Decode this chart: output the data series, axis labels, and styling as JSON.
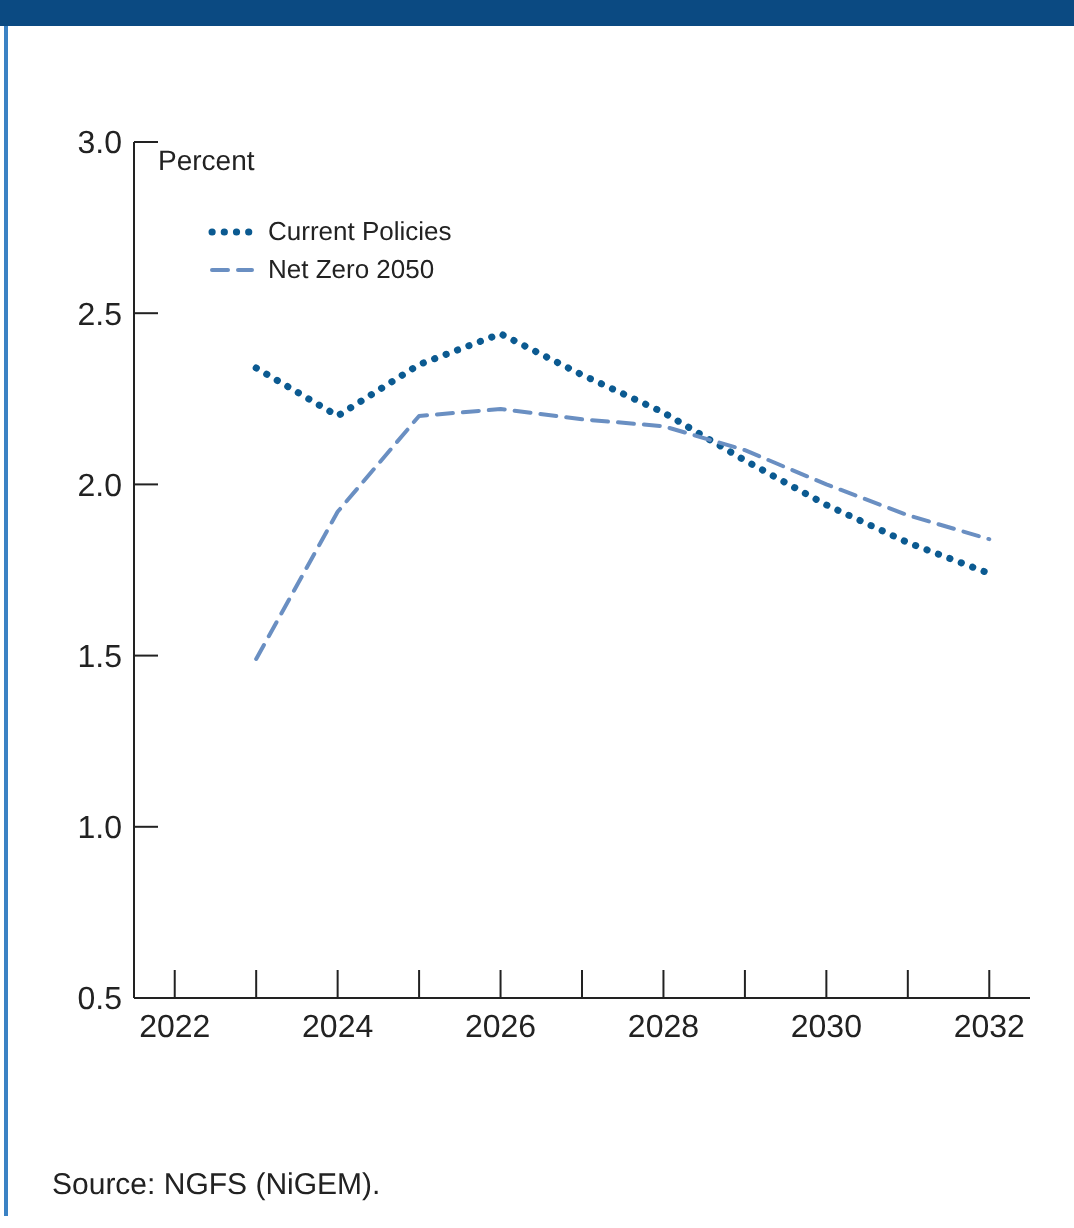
{
  "chart_data": {
    "type": "line",
    "ylabel": "Percent",
    "x": [
      2023,
      2024,
      2025,
      2026,
      2027,
      2028,
      2029,
      2030,
      2031,
      2032
    ],
    "series": [
      {
        "name": "Current Policies",
        "color": "#0b5a91",
        "line_style": "dotted",
        "values": [
          2.34,
          2.2,
          2.35,
          2.44,
          2.32,
          2.21,
          2.07,
          1.94,
          1.83,
          1.74
        ]
      },
      {
        "name": "Net Zero 2050",
        "color": "#6a8fc2",
        "line_style": "dashed",
        "values": [
          1.49,
          1.92,
          2.2,
          2.22,
          2.19,
          2.17,
          2.1,
          2.0,
          1.91,
          1.84
        ]
      }
    ],
    "xlim": [
      2021.5,
      2032.5
    ],
    "xticks": [
      2022,
      {
        "value": 2023,
        "label": null
      },
      2024,
      {
        "value": 2025,
        "label": null
      },
      2026,
      {
        "value": 2027,
        "label": null
      },
      2028,
      {
        "value": 2029,
        "label": null
      },
      2030,
      {
        "value": 2031,
        "label": null
      },
      2032
    ],
    "ylim": [
      0.5,
      3.0
    ],
    "yticks": [
      0.5,
      {
        "value": 1,
        "label": "1.0"
      },
      1.5,
      {
        "value": 2,
        "label": "2.0"
      },
      2.5,
      {
        "value": 3,
        "label": "3.0"
      }
    ],
    "grid": false,
    "legend": "top left",
    "marker": "none",
    "annotations": [
      "Source: NGFS (NiGEM)."
    ]
  }
}
